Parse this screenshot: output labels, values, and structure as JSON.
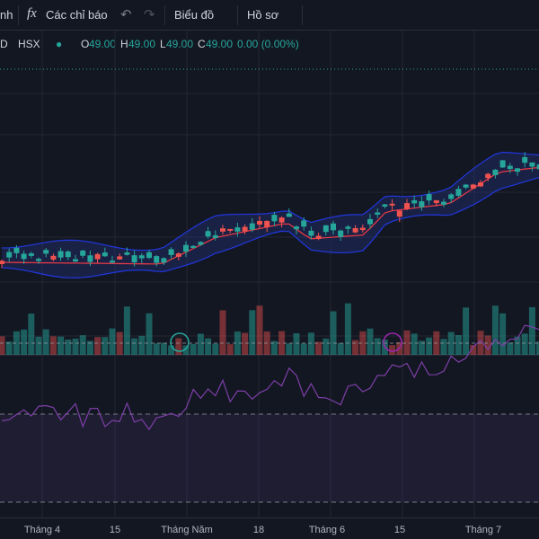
{
  "toolbar": {
    "cut_label": "nh",
    "indicator_icon": "fx",
    "indicators": "Các chỉ báo",
    "chart": "Biểu đồ",
    "profile": "Hồ sơ"
  },
  "legend": {
    "symbol": "D",
    "exchange": "HSX",
    "open_label": "O",
    "open": "49.00",
    "high_label": "H",
    "high": "49.00",
    "low_label": "L",
    "low": "49.00",
    "close_label": "C",
    "close": "49.00",
    "change": "0.00 (0.00%)"
  },
  "time_axis": [
    "Tháng 4",
    "15",
    "Tháng Năm",
    "18",
    "Tháng 6",
    "15",
    "Tháng 7"
  ]
}
